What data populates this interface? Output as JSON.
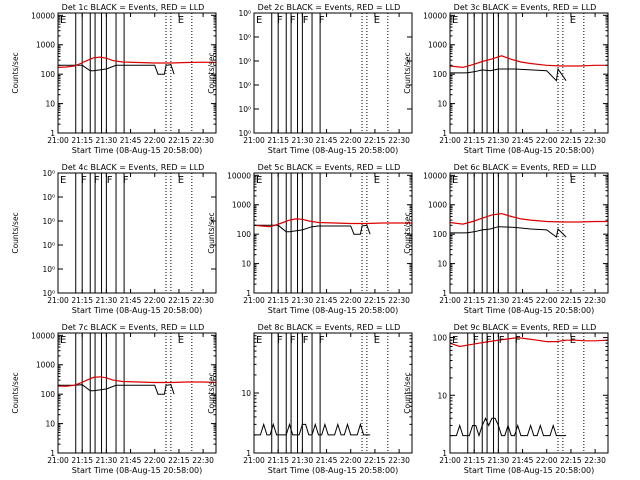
{
  "figure": {
    "background": "#ffffff",
    "event_color": "#000000",
    "lld_color": "#dd0000"
  },
  "time_axis": {
    "tick_labels": [
      "21:00",
      "21:15",
      "21:30",
      "21:45",
      "22:00",
      "22:15",
      "22:30"
    ],
    "xlabel": "Start Time (08-Aug-15 20:58:00)"
  },
  "ylabel": "Counts/sec",
  "chart_data": [
    {
      "type": "line",
      "title": "Det 1c BLACK = Events, RED = LLD",
      "ylabel": "Counts/sec",
      "xlabel": "Start Time (08-Aug-15 20:58:00)",
      "x_unit": "minutes after 21:00",
      "xlim": [
        0,
        98
      ],
      "yscale": "log",
      "ylim": [
        1,
        12000
      ],
      "yticks": [
        "1",
        "10",
        "100",
        "1000",
        "10000"
      ],
      "vlines_solid": [
        11,
        15,
        20,
        23,
        27,
        30,
        36,
        41
      ],
      "vlines_dotted": [
        67,
        70,
        83
      ],
      "markers": [
        {
          "label": "E",
          "x": 0
        },
        {
          "label": "E",
          "x": 73
        }
      ],
      "series": [
        {
          "name": "BLACK = Events",
          "color": "#000000",
          "x": [
            0,
            10,
            15,
            20,
            22,
            30,
            36,
            40,
            50,
            60,
            62,
            66,
            67,
            70,
            72
          ],
          "y": [
            200,
            200,
            200,
            130,
            130,
            150,
            200,
            200,
            200,
            200,
            100,
            100,
            200,
            210,
            100
          ]
        },
        {
          "name": "RED = LLD",
          "color": "#dd0000",
          "x": [
            0,
            5,
            10,
            14,
            18,
            22,
            26,
            30,
            34,
            40,
            50,
            60,
            70,
            80,
            90,
            98
          ],
          "y": [
            170,
            175,
            190,
            230,
            290,
            360,
            380,
            350,
            290,
            260,
            250,
            240,
            240,
            250,
            255,
            250
          ]
        }
      ]
    },
    {
      "type": "line",
      "title": "Det 2c BLACK = Events, RED = LLD",
      "ylabel": "Counts/sec",
      "xlabel": "Start Time (08-Aug-15 20:58:00)",
      "x_unit": "minutes after 21:00",
      "xlim": [
        0,
        98
      ],
      "yscale": "log",
      "ylim": [
        0.6,
        1.2
      ],
      "yticks": [
        "10⁰",
        "10⁰",
        "10⁰",
        "10⁰",
        "10⁰",
        "10⁰"
      ],
      "vlines_solid": [
        11,
        15,
        20,
        23,
        27,
        30,
        36,
        41
      ],
      "vlines_dotted": [
        67,
        70,
        83
      ],
      "markers": [
        {
          "label": "E",
          "x": 0
        },
        {
          "label": "F",
          "x": 13
        },
        {
          "label": "F",
          "x": 21
        },
        {
          "label": "F",
          "x": 29
        },
        {
          "label": "F",
          "x": 39
        },
        {
          "label": "E",
          "x": 73
        }
      ],
      "series": []
    },
    {
      "type": "line",
      "title": "Det 3c BLACK = Events, RED = LLD",
      "ylabel": "Counts/sec",
      "xlabel": "Start Time (08-Aug-15 20:58:00)",
      "x_unit": "minutes after 21:00",
      "xlim": [
        0,
        98
      ],
      "yscale": "log",
      "ylim": [
        1,
        12000
      ],
      "yticks": [
        "1",
        "10",
        "100",
        "1000",
        "10000"
      ],
      "vlines_solid": [
        11,
        15,
        20,
        23,
        27,
        30,
        36,
        41
      ],
      "vlines_dotted": [
        67,
        70,
        83
      ],
      "markers": [
        {
          "label": "E",
          "x": 0
        },
        {
          "label": "E",
          "x": 73
        }
      ],
      "series": [
        {
          "name": "BLACK = Events",
          "color": "#000000",
          "x": [
            0,
            10,
            15,
            20,
            25,
            30,
            40,
            50,
            60,
            66,
            67,
            72
          ],
          "y": [
            110,
            110,
            120,
            140,
            130,
            150,
            150,
            140,
            130,
            60,
            150,
            60
          ]
        },
        {
          "name": "RED = LLD",
          "color": "#dd0000",
          "x": [
            0,
            8,
            14,
            20,
            26,
            32,
            38,
            44,
            50,
            60,
            70,
            80,
            90,
            98
          ],
          "y": [
            190,
            170,
            210,
            270,
            330,
            420,
            320,
            260,
            230,
            200,
            190,
            190,
            200,
            200
          ]
        }
      ]
    },
    {
      "type": "line",
      "title": "Det 4c BLACK = Events, RED = LLD",
      "ylabel": "Counts/sec",
      "xlabel": "Start Time (08-Aug-15 20:58:00)",
      "x_unit": "minutes after 21:00",
      "xlim": [
        0,
        98
      ],
      "yscale": "log",
      "ylim": [
        0.6,
        1.2
      ],
      "yticks": [
        "10⁰",
        "10⁰",
        "10⁰",
        "10⁰",
        "10⁰",
        "10⁰"
      ],
      "vlines_solid": [
        11,
        15,
        20,
        23,
        27,
        30,
        36,
        41
      ],
      "vlines_dotted": [
        67,
        70,
        83
      ],
      "markers": [
        {
          "label": "E",
          "x": 0
        },
        {
          "label": "F",
          "x": 13
        },
        {
          "label": "F",
          "x": 21
        },
        {
          "label": "F",
          "x": 29
        },
        {
          "label": "F",
          "x": 39
        },
        {
          "label": "E",
          "x": 73
        }
      ],
      "series": []
    },
    {
      "type": "line",
      "title": "Det 5c BLACK = Events, RED = LLD",
      "ylabel": "Counts/sec",
      "xlabel": "Start Time (08-Aug-15 20:58:00)",
      "x_unit": "minutes after 21:00",
      "xlim": [
        0,
        98
      ],
      "yscale": "log",
      "ylim": [
        1,
        12000
      ],
      "yticks": [
        "1",
        "10",
        "100",
        "1000",
        "10000"
      ],
      "vlines_solid": [
        11,
        15,
        20,
        23,
        27,
        30,
        36,
        41
      ],
      "vlines_dotted": [
        67,
        70,
        83
      ],
      "markers": [
        {
          "label": "E",
          "x": 0
        },
        {
          "label": "E",
          "x": 73
        }
      ],
      "series": [
        {
          "name": "BLACK = Events",
          "color": "#000000",
          "x": [
            0,
            10,
            15,
            20,
            22,
            30,
            36,
            40,
            50,
            60,
            62,
            66,
            67,
            70,
            72
          ],
          "y": [
            200,
            200,
            200,
            120,
            120,
            140,
            180,
            190,
            190,
            190,
            100,
            100,
            190,
            200,
            100
          ]
        },
        {
          "name": "RED = LLD",
          "color": "#dd0000",
          "x": [
            0,
            5,
            10,
            14,
            18,
            22,
            26,
            30,
            34,
            40,
            50,
            60,
            70,
            80,
            90,
            98
          ],
          "y": [
            200,
            190,
            180,
            210,
            250,
            300,
            330,
            320,
            280,
            250,
            240,
            230,
            230,
            240,
            240,
            240
          ]
        }
      ]
    },
    {
      "type": "line",
      "title": "Det 6c BLACK = Events, RED = LLD",
      "ylabel": "Counts/sec",
      "xlabel": "Start Time (08-Aug-15 20:58:00)",
      "x_unit": "minutes after 21:00",
      "xlim": [
        0,
        98
      ],
      "yscale": "log",
      "ylim": [
        1,
        12000
      ],
      "yticks": [
        "1",
        "10",
        "100",
        "1000",
        "10000"
      ],
      "vlines_solid": [
        11,
        15,
        20,
        23,
        27,
        30,
        36,
        41
      ],
      "vlines_dotted": [
        67,
        70,
        83
      ],
      "markers": [
        {
          "label": "E",
          "x": 0
        },
        {
          "label": "E",
          "x": 73
        }
      ],
      "series": [
        {
          "name": "BLACK = Events",
          "color": "#000000",
          "x": [
            0,
            10,
            15,
            20,
            25,
            30,
            40,
            50,
            60,
            66,
            67,
            72
          ],
          "y": [
            110,
            110,
            120,
            140,
            150,
            180,
            170,
            150,
            140,
            80,
            150,
            80
          ]
        },
        {
          "name": "RED = LLD",
          "color": "#dd0000",
          "x": [
            0,
            8,
            14,
            20,
            26,
            32,
            38,
            44,
            50,
            60,
            70,
            80,
            90,
            98
          ],
          "y": [
            250,
            220,
            270,
            350,
            450,
            500,
            400,
            330,
            300,
            270,
            260,
            260,
            270,
            270
          ]
        }
      ]
    },
    {
      "type": "line",
      "title": "Det 7c BLACK = Events, RED = LLD",
      "ylabel": "Counts/sec",
      "xlabel": "Start Time (08-Aug-15 20:58:00)",
      "x_unit": "minutes after 21:00",
      "xlim": [
        0,
        98
      ],
      "yscale": "log",
      "ylim": [
        1,
        12000
      ],
      "yticks": [
        "1",
        "10",
        "100",
        "1000",
        "10000"
      ],
      "vlines_solid": [
        11,
        15,
        20,
        23,
        27,
        30,
        36,
        41
      ],
      "vlines_dotted": [
        67,
        70,
        83
      ],
      "markers": [
        {
          "label": "E",
          "x": 0
        },
        {
          "label": "E",
          "x": 73
        }
      ],
      "series": [
        {
          "name": "BLACK = Events",
          "color": "#000000",
          "x": [
            0,
            10,
            15,
            20,
            22,
            30,
            36,
            40,
            50,
            60,
            62,
            66,
            67,
            70,
            72
          ],
          "y": [
            200,
            200,
            210,
            130,
            130,
            150,
            200,
            200,
            200,
            200,
            100,
            100,
            200,
            210,
            100
          ]
        },
        {
          "name": "RED = LLD",
          "color": "#dd0000",
          "x": [
            0,
            5,
            10,
            14,
            18,
            22,
            26,
            30,
            34,
            40,
            50,
            60,
            70,
            80,
            90,
            98
          ],
          "y": [
            190,
            185,
            200,
            240,
            300,
            370,
            390,
            360,
            300,
            270,
            260,
            250,
            250,
            260,
            260,
            250
          ]
        }
      ]
    },
    {
      "type": "line",
      "title": "Det 8c BLACK = Events, RED = LLD",
      "ylabel": "Counts/sec",
      "xlabel": "Start Time (08-Aug-15 20:58:00)",
      "x_unit": "minutes after 21:00",
      "xlim": [
        0,
        98
      ],
      "yscale": "log",
      "ylim": [
        1,
        100
      ],
      "yticks": [
        "1",
        "10"
      ],
      "vlines_solid": [
        11,
        15,
        20,
        23,
        27,
        30,
        36,
        41
      ],
      "vlines_dotted": [
        67,
        70,
        83
      ],
      "markers": [
        {
          "label": "E",
          "x": 0
        },
        {
          "label": "F",
          "x": 13
        },
        {
          "label": "F",
          "x": 21
        },
        {
          "label": "F",
          "x": 29
        },
        {
          "label": "F",
          "x": 39
        },
        {
          "label": "E",
          "x": 73
        }
      ],
      "series": [
        {
          "name": "BLACK = Events",
          "color": "#000000",
          "x": [
            0,
            2,
            4,
            6,
            8,
            10,
            12,
            14,
            16,
            18,
            20,
            22,
            24,
            26,
            28,
            30,
            32,
            34,
            36,
            38,
            40,
            42,
            44,
            46,
            48,
            50,
            52,
            54,
            56,
            58,
            60,
            62,
            64,
            66,
            68,
            70,
            72
          ],
          "y": [
            2,
            2,
            2,
            3,
            2,
            2,
            3,
            2,
            2,
            2,
            2,
            3,
            2,
            2,
            2,
            3,
            3,
            2,
            2,
            3,
            2,
            2,
            3,
            2,
            2,
            2,
            3,
            2,
            2,
            3,
            2,
            2,
            2,
            3,
            2,
            2,
            2
          ]
        }
      ]
    },
    {
      "type": "line",
      "title": "Det 9c BLACK = Events, RED = LLD",
      "ylabel": "Counts/sec",
      "xlabel": "Start Time (08-Aug-15 20:58:00)",
      "x_unit": "minutes after 21:00",
      "xlim": [
        0,
        98
      ],
      "yscale": "log",
      "ylim": [
        1,
        120
      ],
      "yticks": [
        "1",
        "10",
        "100"
      ],
      "vlines_solid": [
        11,
        15,
        20,
        23,
        27,
        30,
        36,
        41
      ],
      "vlines_dotted": [
        67,
        70,
        83
      ],
      "markers": [
        {
          "label": "E",
          "x": 0
        },
        {
          "label": "F",
          "x": 13
        },
        {
          "label": "F",
          "x": 21
        },
        {
          "label": "F",
          "x": 29
        },
        {
          "label": "F",
          "x": 39
        },
        {
          "label": "E",
          "x": 73
        }
      ],
      "series": [
        {
          "name": "BLACK = Events",
          "color": "#000000",
          "x": [
            0,
            2,
            4,
            6,
            8,
            10,
            12,
            14,
            16,
            18,
            20,
            22,
            24,
            26,
            28,
            30,
            32,
            34,
            36,
            38,
            40,
            42,
            44,
            46,
            48,
            50,
            52,
            54,
            56,
            58,
            60,
            62,
            64,
            66,
            68,
            70,
            72
          ],
          "y": [
            2,
            2,
            2,
            3,
            2,
            2,
            2,
            3,
            3,
            2,
            3,
            4,
            3,
            4,
            4,
            3,
            2,
            2,
            3,
            2,
            2,
            3,
            2,
            2,
            2,
            3,
            2,
            2,
            3,
            2,
            2,
            2,
            3,
            2,
            2,
            2,
            2
          ]
        },
        {
          "name": "RED = LLD",
          "color": "#dd0000",
          "x": [
            0,
            6,
            12,
            18,
            24,
            30,
            36,
            42,
            48,
            54,
            60,
            66,
            72,
            78,
            84,
            90,
            98
          ],
          "y": [
            80,
            70,
            75,
            80,
            85,
            90,
            95,
            100,
            95,
            90,
            85,
            85,
            90,
            90,
            88,
            88,
            90
          ]
        }
      ]
    }
  ]
}
